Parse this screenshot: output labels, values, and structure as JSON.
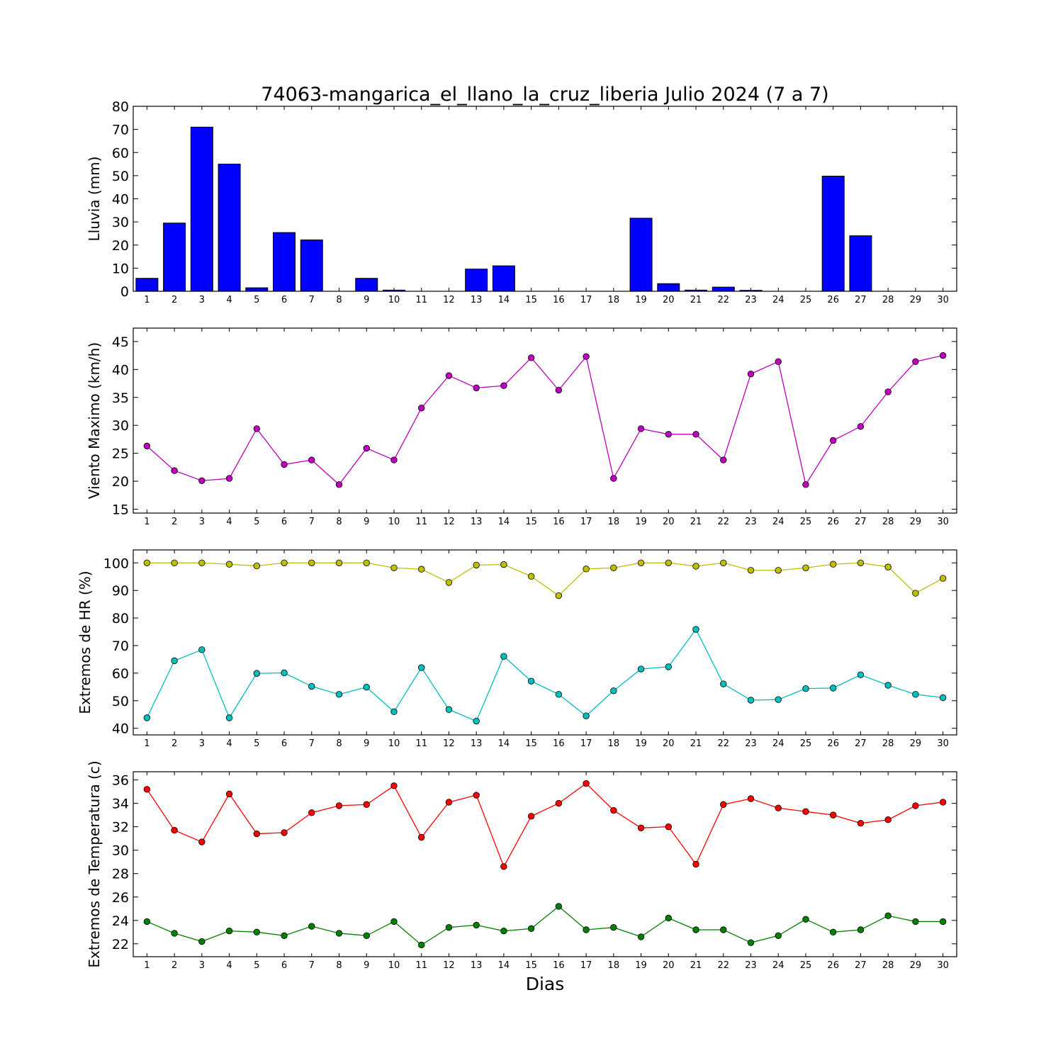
{
  "title": "74063-mangarica_el_llano_la_cruz_liberia Julio 2024  (7 a 7)",
  "xlabel": "Dias",
  "days": [
    1,
    2,
    3,
    4,
    5,
    6,
    7,
    8,
    9,
    10,
    11,
    12,
    13,
    14,
    15,
    16,
    17,
    18,
    19,
    20,
    21,
    22,
    23,
    24,
    25,
    26,
    27,
    28,
    29,
    30
  ],
  "chart_data": [
    {
      "type": "bar",
      "ylabel": "Lluvia (mm)",
      "ylim": [
        0,
        80
      ],
      "yticks": [
        0,
        10,
        20,
        30,
        40,
        50,
        60,
        70,
        80
      ],
      "x": [
        1,
        2,
        3,
        4,
        5,
        6,
        7,
        8,
        9,
        10,
        11,
        12,
        13,
        14,
        15,
        16,
        17,
        18,
        19,
        20,
        21,
        22,
        23,
        24,
        25,
        26,
        27,
        28,
        29,
        30
      ],
      "series": [
        {
          "color": "#0000ff",
          "values": [
            5.6,
            29.5,
            71.0,
            55.0,
            1.5,
            25.4,
            22.2,
            0,
            5.6,
            0.5,
            0,
            0,
            9.6,
            11.0,
            0,
            0,
            0,
            0,
            31.6,
            3.3,
            0.5,
            1.8,
            0.4,
            0,
            0,
            49.8,
            24.0,
            0,
            0,
            0
          ]
        }
      ]
    },
    {
      "type": "line",
      "ylabel": "Viento Maximo (km/h)",
      "ylim": [
        14.3,
        47.4
      ],
      "yticks": [
        15,
        20,
        25,
        30,
        35,
        40,
        45
      ],
      "x": [
        1,
        2,
        3,
        4,
        5,
        6,
        7,
        8,
        9,
        10,
        11,
        12,
        13,
        14,
        15,
        16,
        17,
        18,
        19,
        20,
        21,
        22,
        23,
        24,
        25,
        26,
        27,
        28,
        29,
        30
      ],
      "series": [
        {
          "color": "#bf00bf",
          "values": [
            26.3,
            21.9,
            20.1,
            20.5,
            29.4,
            23.0,
            23.8,
            19.4,
            25.9,
            23.8,
            33.1,
            38.9,
            36.7,
            37.1,
            42.1,
            36.3,
            42.3,
            20.5,
            29.4,
            28.4,
            28.4,
            23.8,
            39.2,
            41.4,
            19.4,
            27.3,
            29.8,
            36.0,
            41.4,
            42.5
          ]
        }
      ]
    },
    {
      "type": "line",
      "ylabel": "Extremos de HR (%)",
      "ylim": [
        37.6,
        104.7
      ],
      "yticks": [
        40,
        50,
        60,
        70,
        80,
        90,
        100
      ],
      "x": [
        1,
        2,
        3,
        4,
        5,
        6,
        7,
        8,
        9,
        10,
        11,
        12,
        13,
        14,
        15,
        16,
        17,
        18,
        19,
        20,
        21,
        22,
        23,
        24,
        25,
        26,
        27,
        28,
        29,
        30
      ],
      "series": [
        {
          "color": "#bfbf00",
          "values": [
            100,
            100,
            100,
            99.5,
            98.9,
            100,
            100,
            100,
            100,
            98.2,
            97.7,
            92.9,
            99.2,
            99.4,
            95.1,
            88.1,
            97.8,
            98.2,
            100,
            100,
            98.8,
            100,
            97.3,
            97.3,
            98.2,
            99.5,
            100,
            98.5,
            89.0,
            94.4
          ]
        },
        {
          "color": "#00bfbf",
          "values": [
            43.8,
            64.5,
            68.5,
            43.8,
            59.9,
            60.1,
            55.2,
            52.3,
            54.9,
            46.0,
            62.0,
            46.8,
            42.6,
            66.1,
            57.1,
            52.3,
            44.5,
            53.6,
            61.5,
            62.3,
            75.9,
            56.1,
            50.2,
            50.4,
            54.4,
            54.6,
            59.4,
            55.6,
            52.3,
            51.1
          ]
        }
      ]
    },
    {
      "type": "line",
      "ylabel": "Extremos de Temperatura (c)",
      "ylim": [
        20.9,
        36.7
      ],
      "yticks": [
        22,
        24,
        26,
        28,
        30,
        32,
        34,
        36
      ],
      "x": [
        1,
        2,
        3,
        4,
        5,
        6,
        7,
        8,
        9,
        10,
        11,
        12,
        13,
        14,
        15,
        16,
        17,
        18,
        19,
        20,
        21,
        22,
        23,
        24,
        25,
        26,
        27,
        28,
        29,
        30
      ],
      "series": [
        {
          "color": "#ff0000",
          "values": [
            35.2,
            31.7,
            30.7,
            34.8,
            31.4,
            31.5,
            33.2,
            33.8,
            33.9,
            35.5,
            31.1,
            34.1,
            34.7,
            28.6,
            32.9,
            34.0,
            35.7,
            33.4,
            31.9,
            32.0,
            28.8,
            33.9,
            34.4,
            33.6,
            33.3,
            33.0,
            32.3,
            32.6,
            33.8,
            34.1
          ]
        },
        {
          "color": "#008000",
          "values": [
            23.9,
            22.9,
            22.2,
            23.1,
            23.0,
            22.7,
            23.5,
            22.9,
            22.7,
            23.9,
            21.9,
            23.4,
            23.6,
            23.1,
            23.3,
            25.2,
            23.2,
            23.4,
            22.6,
            24.2,
            23.2,
            23.2,
            22.1,
            22.7,
            24.1,
            23.0,
            23.2,
            24.4,
            23.9,
            23.9
          ]
        }
      ]
    }
  ]
}
